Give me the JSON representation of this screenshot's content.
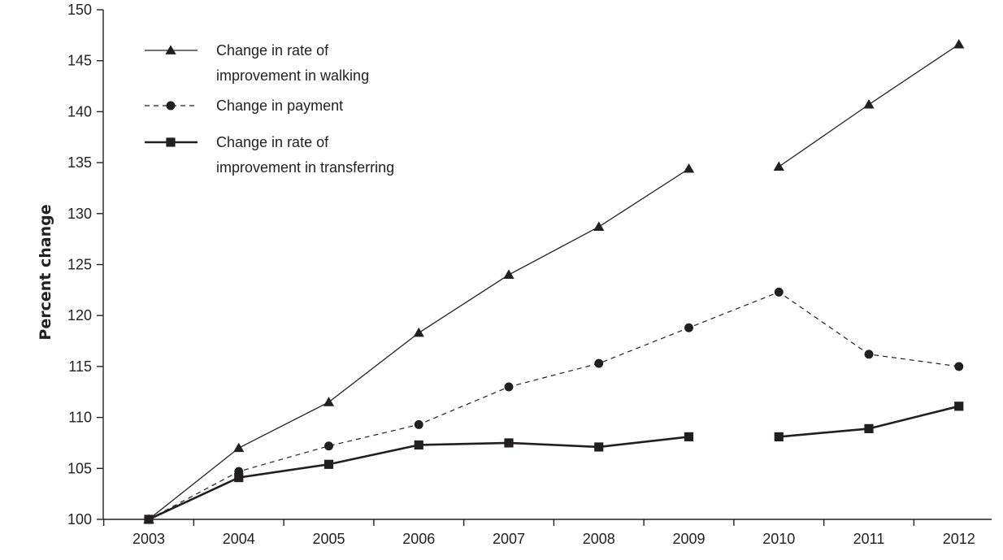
{
  "chart_data": {
    "type": "line",
    "title": "",
    "xlabel": "",
    "ylabel": "Percent change",
    "categories": [
      "2003",
      "2004",
      "2005",
      "2006",
      "2007",
      "2008",
      "2009",
      "2010",
      "2011",
      "2012"
    ],
    "ylim": [
      100,
      150
    ],
    "yticks": [
      100,
      105,
      110,
      115,
      120,
      125,
      130,
      135,
      140,
      145,
      150
    ],
    "grid": false,
    "legend_position": "top-left",
    "series": [
      {
        "name": "Change in rate of improvement in walking",
        "legend_lines": [
          "Change in rate of",
          "improvement in walking"
        ],
        "marker": "triangle",
        "line_style": "solid-thin",
        "color": "#231f20",
        "values": [
          100,
          107,
          111.5,
          118.3,
          124,
          128.7,
          134.4,
          134.6,
          140.7,
          146.6
        ]
      },
      {
        "name": "Change in payment",
        "legend_lines": [
          "Change in payment"
        ],
        "marker": "circle",
        "line_style": "dashed",
        "color": "#231f20",
        "values": [
          100,
          104.7,
          107.2,
          109.3,
          113,
          115.3,
          118.8,
          122.3,
          116.2,
          115
        ]
      },
      {
        "name": "Change in rate of improvement in transferring",
        "legend_lines": [
          "Change in rate of",
          "improvement in transferring"
        ],
        "marker": "square",
        "line_style": "solid-thick",
        "color": "#231f20",
        "values": [
          100,
          104.1,
          105.4,
          107.3,
          107.5,
          107.1,
          108.1,
          108.1,
          108.9,
          111.1
        ]
      }
    ],
    "gap_between": [
      "2009",
      "2010"
    ]
  }
}
